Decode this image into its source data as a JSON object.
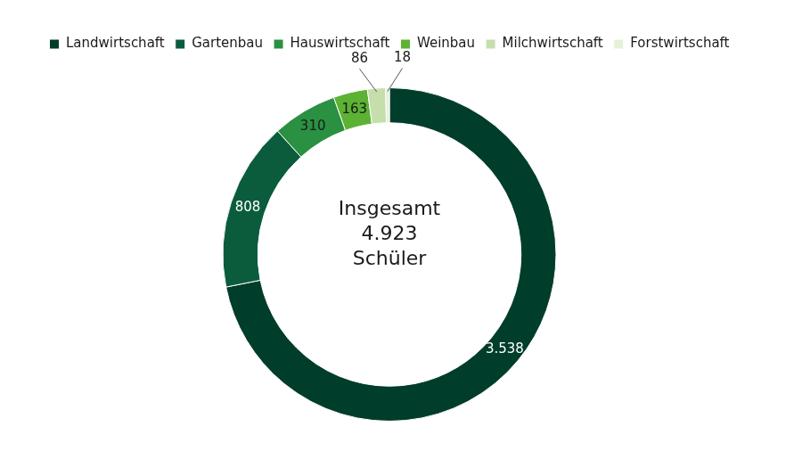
{
  "chart_data": {
    "type": "doughnut",
    "categories": [
      "Landwirtschaft",
      "Gartenbau",
      "Hauswirtschaft",
      "Weinbau",
      "Milchwirtschaft",
      "Forstwirtschaft"
    ],
    "values": [
      3538,
      808,
      310,
      163,
      86,
      18
    ],
    "value_labels": [
      "3.538",
      "808",
      "310",
      "163",
      "86",
      "18"
    ],
    "colors": [
      "#003d2b",
      "#0a5c3d",
      "#2a9042",
      "#5db234",
      "#c5dfac",
      "#e6f0d8"
    ],
    "legend": "top",
    "data_labels": true,
    "center_text": [
      "Insgesamt",
      {
        "value": 4923,
        "label": "4.923"
      },
      "Schüler"
    ]
  }
}
